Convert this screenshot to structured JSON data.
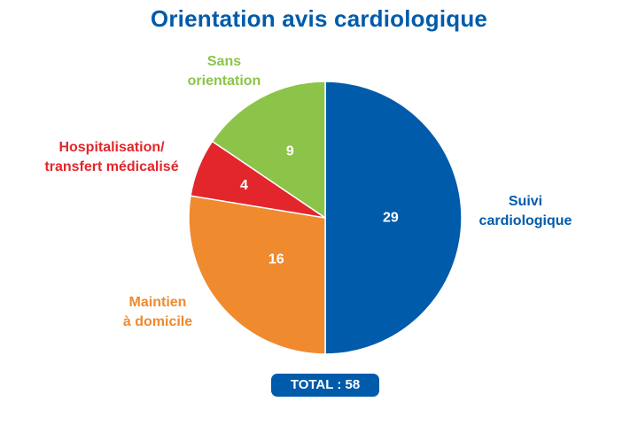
{
  "chart_data": {
    "type": "pie",
    "title": "Orientation avis cardiologique",
    "slices": [
      {
        "label_lines": [
          "Suivi",
          "cardiologique"
        ],
        "value": 29,
        "color": "#005bab"
      },
      {
        "label_lines": [
          "Maintien",
          "à domicile"
        ],
        "value": 16,
        "color": "#ef8a2e"
      },
      {
        "label_lines": [
          "Hospitalisation/",
          "transfert médicalisé"
        ],
        "value": 4,
        "color": "#e3262c"
      },
      {
        "label_lines": [
          "Sans",
          "orientation"
        ],
        "value": 9,
        "color": "#8cc44a"
      }
    ],
    "start": "top",
    "direction": "clockwise",
    "total_label": "TOTAL : 58"
  },
  "colors": {
    "title": "#005bab",
    "badge": "#005bab",
    "slice_border": "#ffffff"
  }
}
